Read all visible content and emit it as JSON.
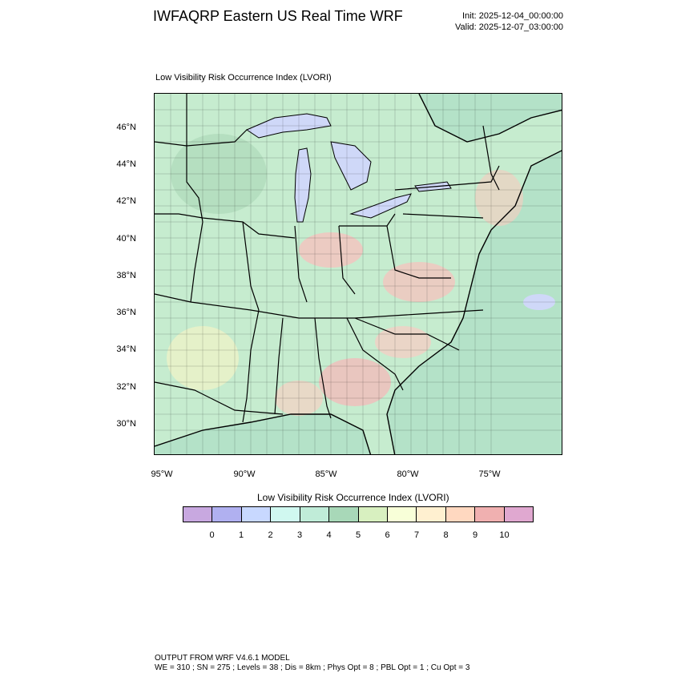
{
  "header": {
    "title": "IWFAQRP Eastern US Real Time WRF",
    "init": "Init: 2025-12-04_00:00:00",
    "valid": "Valid: 2025-12-07_03:00:00"
  },
  "map": {
    "subtitle": "Low Visibility Risk Occurrence Index   (LVORI)",
    "lat_labels": [
      "46°N",
      "44°N",
      "42°N",
      "40°N",
      "38°N",
      "36°N",
      "34°N",
      "32°N",
      "30°N"
    ],
    "lon_labels": [
      "95°W",
      "90°W",
      "85°W",
      "80°W",
      "75°W"
    ],
    "colors": {
      "water": "#a8d8c0",
      "lakes": "#cfd8f8",
      "land_low": "#c8ecd0",
      "land_mid": "#b8e0c0",
      "land_high": "#f0c8c0"
    }
  },
  "colorbar": {
    "title": "Low Visibility Risk Occurrence Index  (LVORI)",
    "ticks": [
      "0",
      "1",
      "2",
      "3",
      "4",
      "5",
      "6",
      "7",
      "8",
      "9",
      "10"
    ],
    "colors": [
      "#c8a8e0",
      "#b0b0f0",
      "#c8d8ff",
      "#d0f8f0",
      "#c0ecd8",
      "#a8d8b8",
      "#d8f0c0",
      "#f8ffd8",
      "#fff0d0",
      "#ffd8c0",
      "#f0b0b0",
      "#e0a8d0"
    ]
  },
  "footer": {
    "line1": "OUTPUT FROM WRF V4.6.1 MODEL",
    "line2": "WE = 310 ; SN = 275 ; Levels = 38 ; Dis = 8km ; Phys Opt = 8 ; PBL Opt = 1 ; Cu Opt = 3"
  }
}
